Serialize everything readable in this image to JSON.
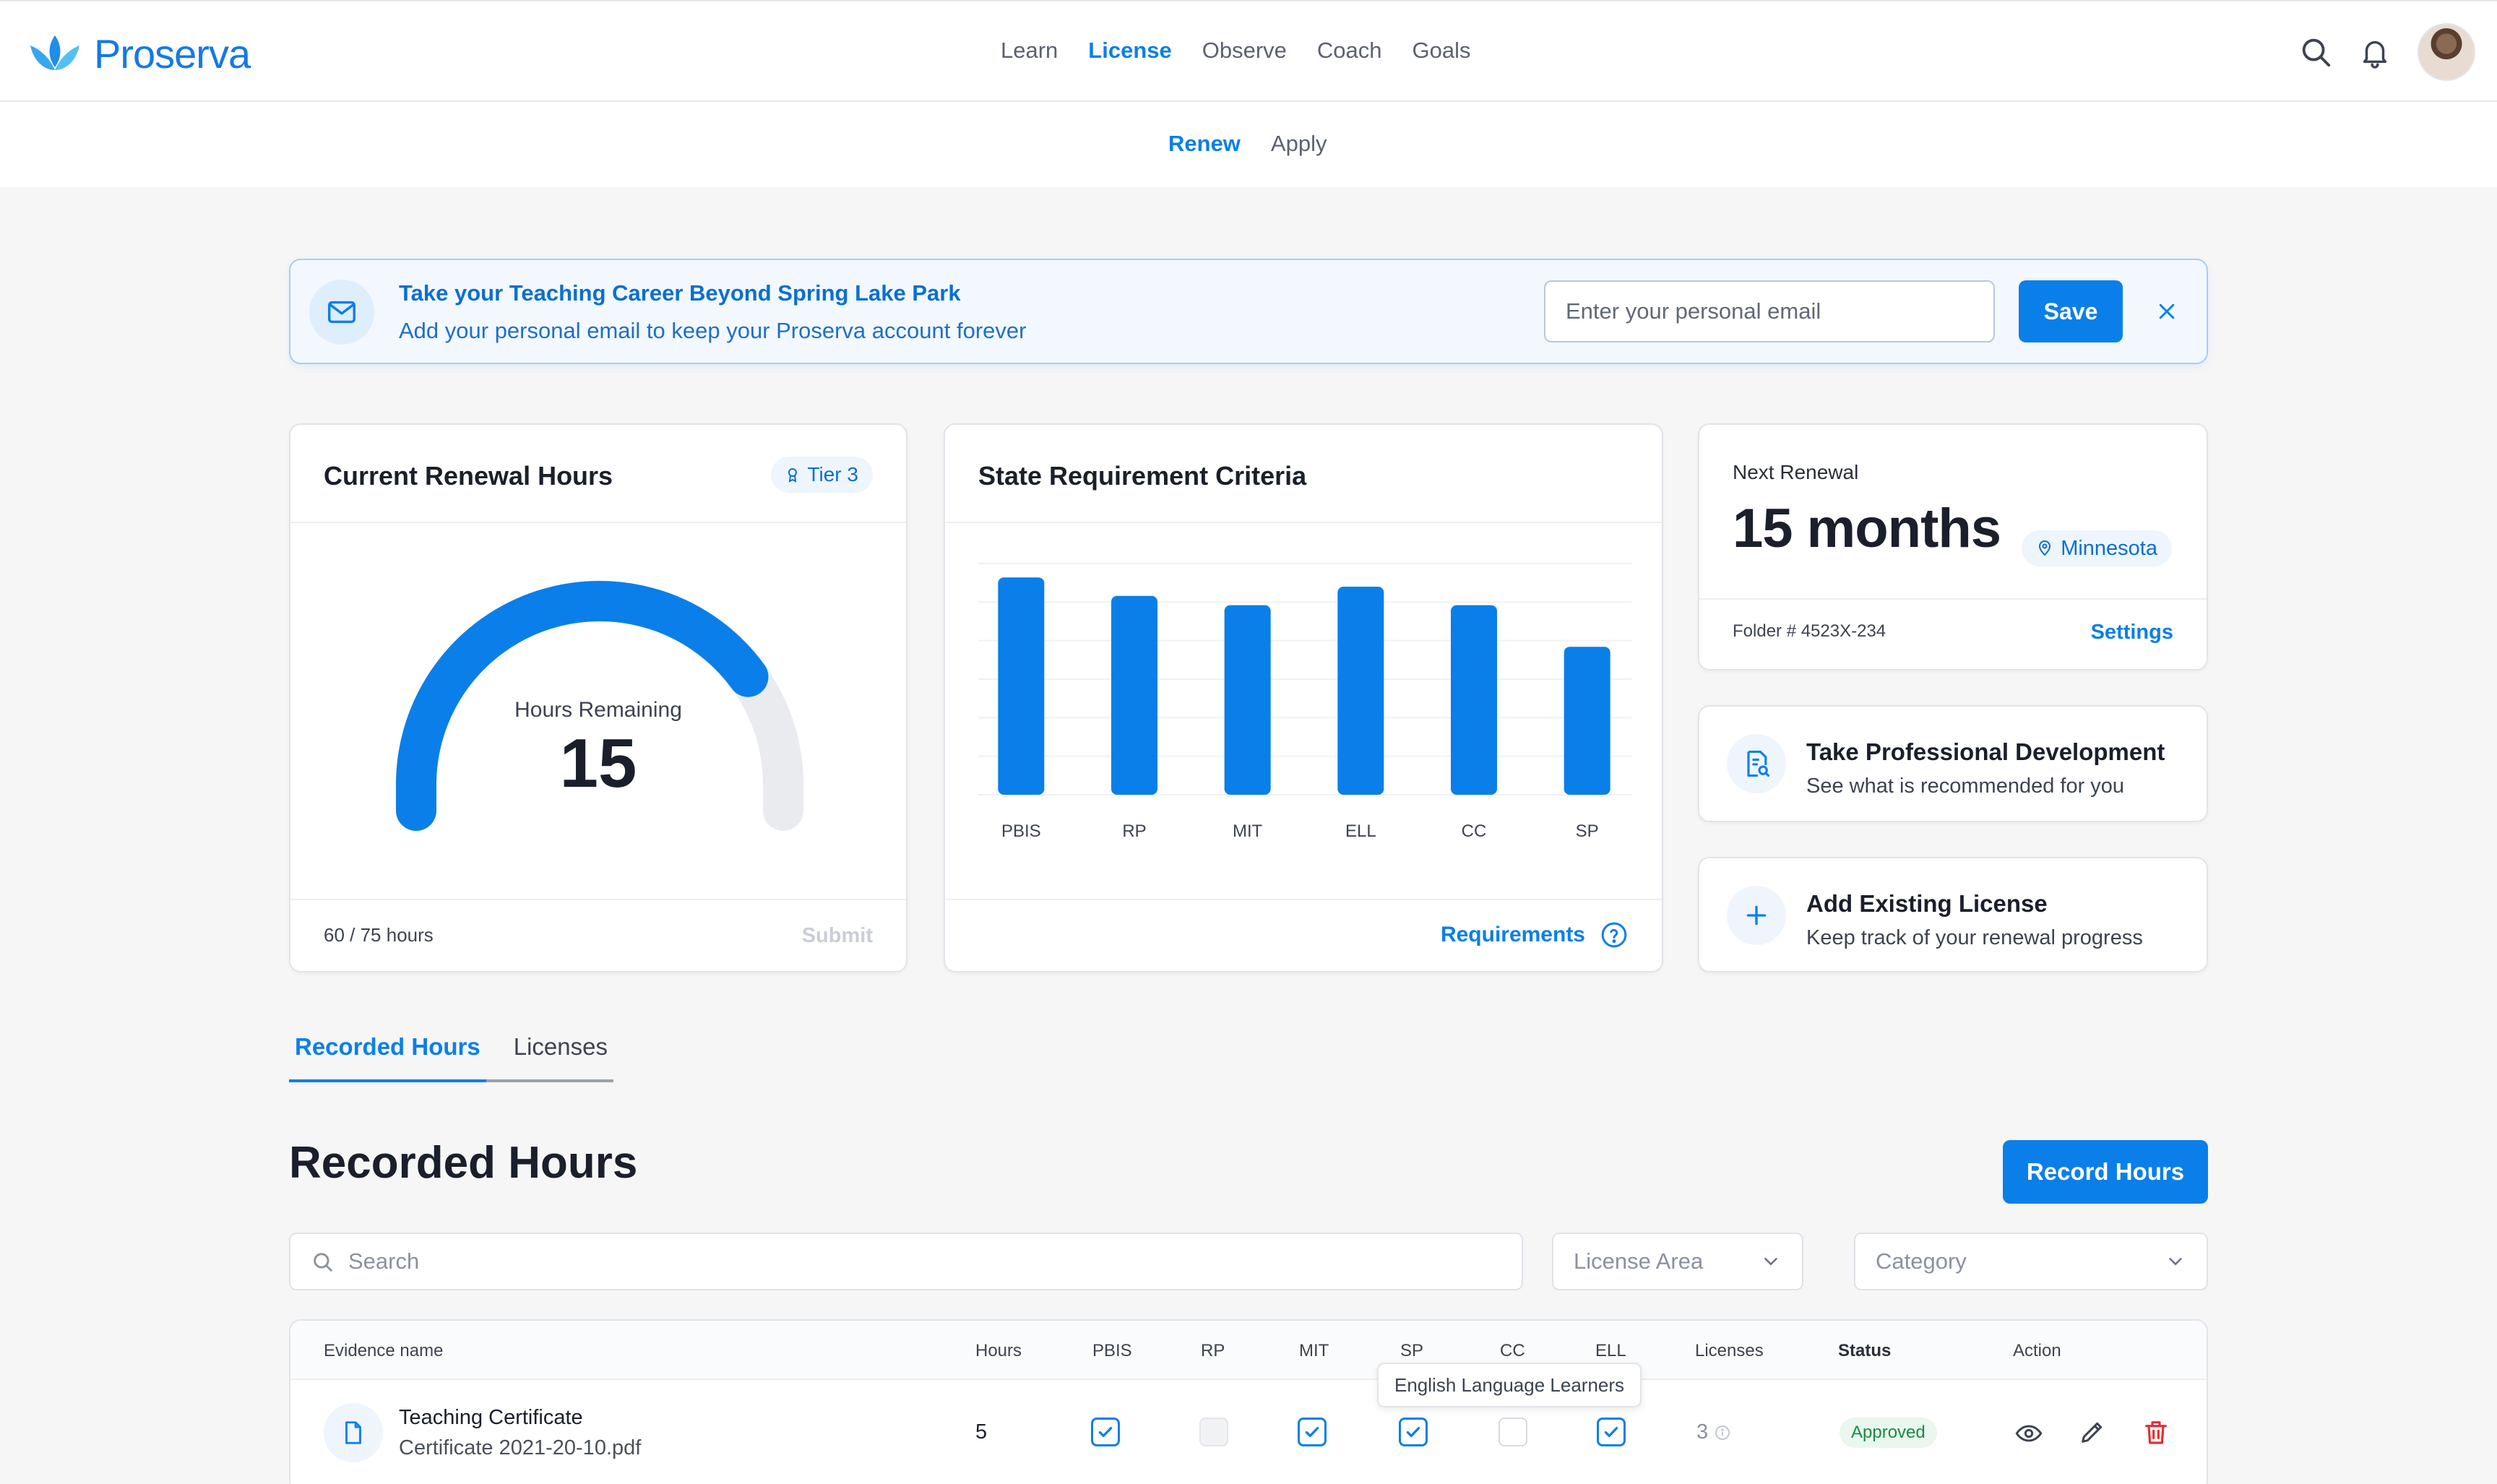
{
  "app": {
    "name": "Proserva"
  },
  "nav": {
    "items": [
      "Learn",
      "License",
      "Observe",
      "Coach",
      "Goals"
    ],
    "active": "License"
  },
  "subnav": {
    "items": [
      "Renew",
      "Apply"
    ],
    "active": "Renew"
  },
  "banner": {
    "title": "Take your Teaching Career Beyond Spring Lake Park",
    "subtitle": "Add your personal email to keep your Proserva account forever",
    "email_placeholder": "Enter your personal email",
    "save_label": "Save"
  },
  "renewal_card": {
    "title": "Current Renewal Hours",
    "tier": "Tier 3",
    "gauge_label": "Hours Remaining",
    "gauge_value": "15",
    "completed": 60,
    "required": 75,
    "progress_text": "60 / 75 hours",
    "submit_label": "Submit"
  },
  "criteria_card": {
    "title": "State Requirement Criteria",
    "link_label": "Requirements"
  },
  "chart_data": {
    "type": "bar",
    "categories": [
      "PBIS",
      "RP",
      "MIT",
      "ELL",
      "CC",
      "SP"
    ],
    "values": [
      94,
      86,
      82,
      90,
      82,
      64
    ],
    "ylim": [
      0,
      100
    ],
    "grid": true,
    "color": "#0a7fe9"
  },
  "next_renewal": {
    "label": "Next Renewal",
    "value": "15 months",
    "state": "Minnesota",
    "folder": "Folder # 4523X-234",
    "settings_label": "Settings"
  },
  "actions": [
    {
      "title": "Take Professional Development",
      "subtitle": "See what is recommended for you",
      "icon": "document-search-icon"
    },
    {
      "title": "Add Existing License",
      "subtitle": "Keep track of your renewal progress",
      "icon": "plus-icon"
    }
  ],
  "tabs": [
    "Recorded Hours",
    "Licenses"
  ],
  "section": {
    "title": "Recorded Hours",
    "record_button": "Record Hours"
  },
  "filters": {
    "search_placeholder": "Search",
    "license_area": "License Area",
    "category": "Category"
  },
  "table": {
    "columns": [
      "Evidence name",
      "Hours",
      "PBIS",
      "RP",
      "MIT",
      "SP",
      "CC",
      "ELL",
      "Licenses",
      "Status",
      "Action"
    ],
    "tooltip": "English Language Learners",
    "rows": [
      {
        "name": "Teaching Certificate",
        "file": "Certificate 2021-20-10.pdf",
        "hours": "5",
        "pbis": "checked",
        "rp": "disabled",
        "mit": "checked",
        "sp": "checked",
        "cc": "unchecked",
        "ell": "checked",
        "licenses": "3",
        "status": "Approved"
      }
    ]
  },
  "colors": {
    "accent": "#0a7fe9",
    "approved": "#1b8b43",
    "danger": "#e0312f"
  }
}
